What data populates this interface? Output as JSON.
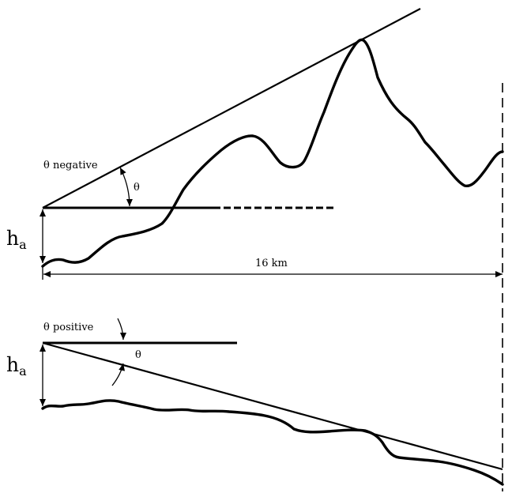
{
  "top": {
    "angle_caption": "θ negative",
    "angle_symbol": "θ",
    "height_symbol": "h",
    "height_subscript": "a",
    "distance_label": "16 km"
  },
  "bottom": {
    "angle_caption": "θ positive",
    "angle_symbol": "θ",
    "height_symbol": "h",
    "height_subscript": "a"
  }
}
